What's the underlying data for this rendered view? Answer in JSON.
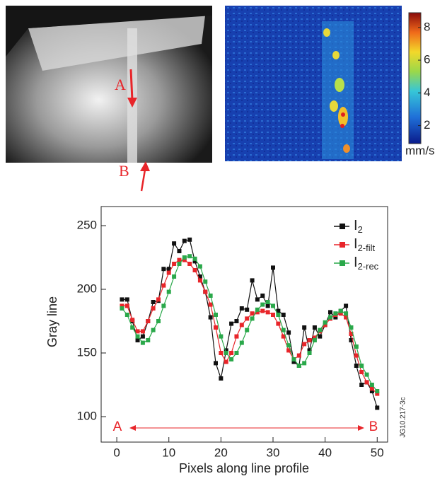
{
  "figure": {
    "photo_labels": [
      "A",
      "B"
    ],
    "colorbar": {
      "lim": [
        0.9,
        8.9
      ],
      "ticks": [
        2,
        4,
        6,
        8
      ],
      "unit": "mm/s"
    },
    "figure_id": "JG10.217-3c"
  },
  "chart_data": {
    "type": "line",
    "x_label": "Pixels along line profile",
    "y_label": "Gray line",
    "x": [
      1,
      2,
      3,
      4,
      5,
      6,
      7,
      8,
      9,
      10,
      11,
      12,
      13,
      14,
      15,
      16,
      17,
      18,
      19,
      20,
      21,
      22,
      23,
      24,
      25,
      26,
      27,
      28,
      29,
      30,
      31,
      32,
      33,
      34,
      35,
      36,
      37,
      38,
      39,
      40,
      41,
      42,
      43,
      44,
      45,
      46,
      47,
      48,
      49,
      50
    ],
    "series": [
      {
        "name": "I2",
        "color": "#111111",
        "values": [
          192,
          192,
          175,
          160,
          163,
          175,
          190,
          191,
          216,
          216,
          236,
          230,
          238,
          239,
          222,
          210,
          198,
          178,
          142,
          130,
          152,
          173,
          175,
          185,
          184,
          207,
          192,
          195,
          187,
          217,
          183,
          180,
          166,
          143,
          140,
          170,
          152,
          170,
          163,
          172,
          182,
          178,
          183,
          187,
          160,
          140,
          125,
          127,
          120,
          107
        ]
      },
      {
        "name": "I2-filt",
        "color": "#e8252a",
        "values": [
          187,
          187,
          176,
          167,
          167,
          175,
          185,
          192,
          203,
          213,
          220,
          223,
          223,
          220,
          215,
          207,
          198,
          188,
          170,
          150,
          143,
          150,
          163,
          172,
          177,
          181,
          182,
          183,
          182,
          180,
          173,
          163,
          152,
          145,
          148,
          157,
          160,
          162,
          167,
          172,
          177,
          180,
          181,
          178,
          165,
          148,
          135,
          127,
          122,
          118
        ]
      },
      {
        "name": "I2-rec",
        "color": "#2aa84a",
        "values": [
          185,
          180,
          170,
          163,
          158,
          160,
          168,
          175,
          187,
          198,
          210,
          220,
          225,
          226,
          224,
          218,
          206,
          195,
          180,
          163,
          150,
          145,
          150,
          158,
          168,
          177,
          184,
          188,
          190,
          187,
          180,
          168,
          156,
          145,
          140,
          142,
          150,
          160,
          168,
          174,
          178,
          181,
          183,
          181,
          170,
          155,
          140,
          133,
          125,
          120
        ]
      }
    ],
    "xlim": [
      -3,
      52
    ],
    "ylim": [
      80,
      265
    ],
    "xticks": [
      0,
      10,
      20,
      30,
      40,
      50
    ],
    "yticks": [
      100,
      150,
      200,
      250
    ],
    "annotations": [
      "A",
      "B"
    ],
    "legend": "upper right"
  }
}
